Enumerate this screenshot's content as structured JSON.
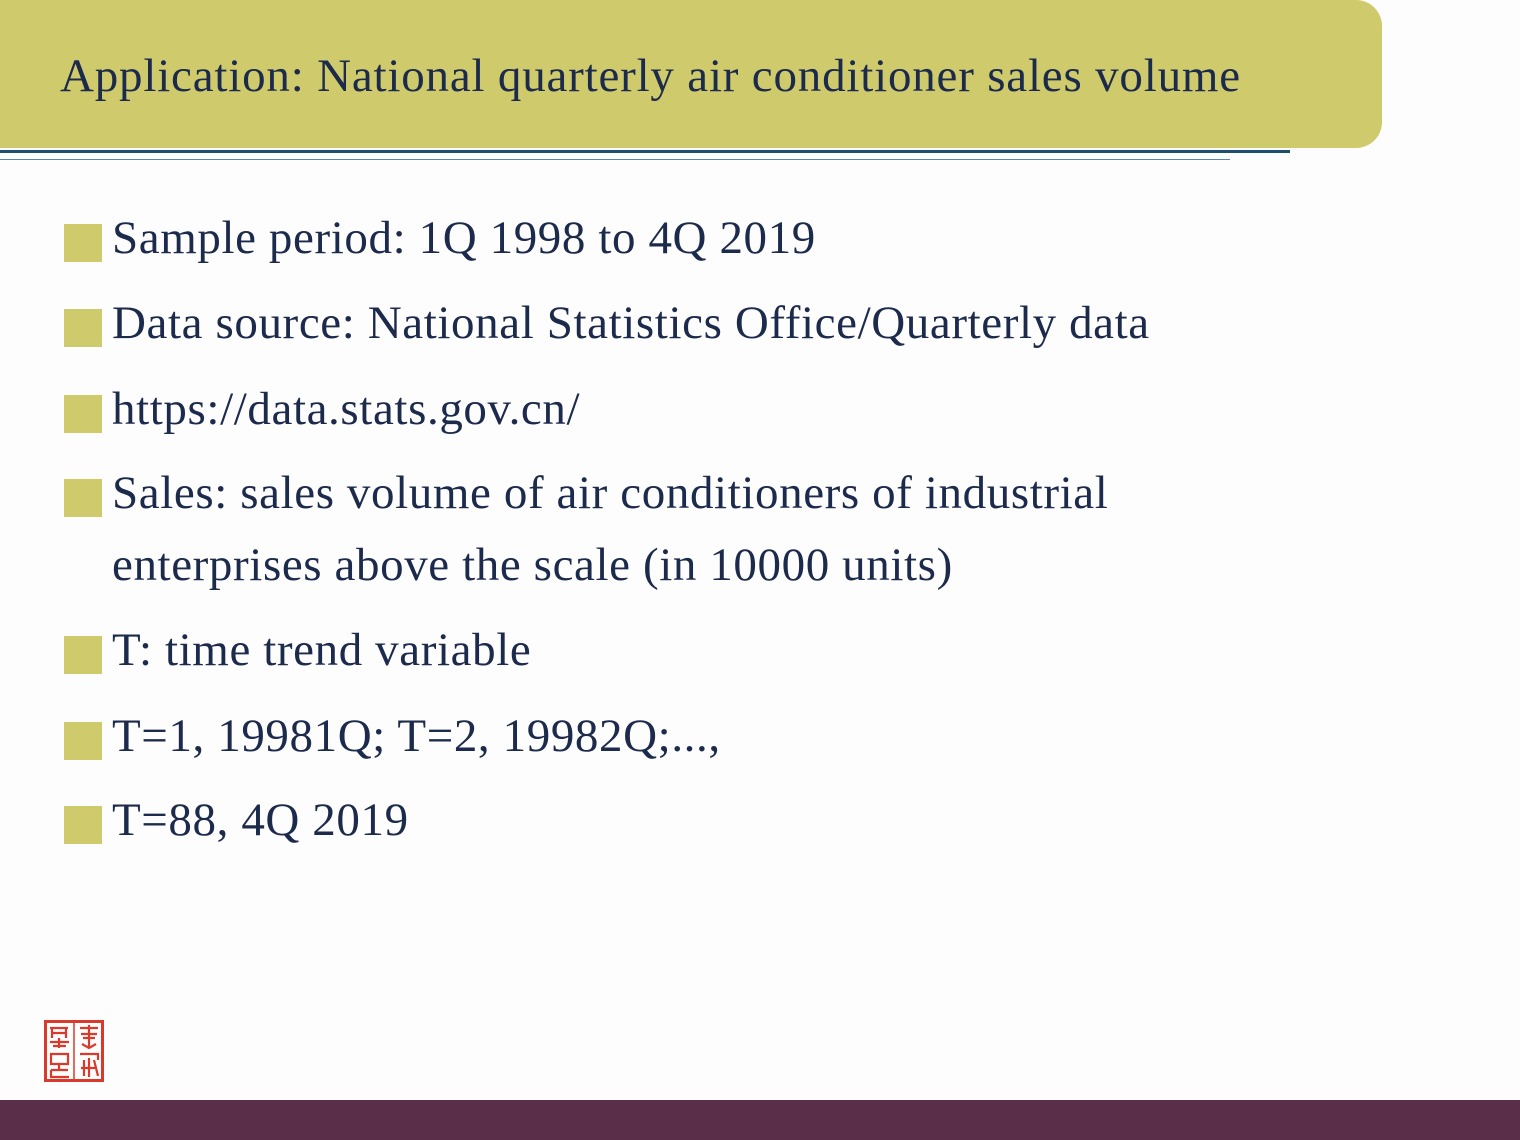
{
  "slide": {
    "title": "Application: National quarterly air conditioner sales volume",
    "bullets": [
      {
        "text": "Sample period: 1Q 1998 to 4Q 2019"
      },
      {
        "text": "Data source: National Statistics Office/Quarterly data"
      },
      {
        "text": "https://data.stats.gov.cn/"
      },
      {
        "text": "Sales: sales volume of air conditioners of industrial",
        "continuation": "enterprises above the scale (in 10000 units)"
      },
      {
        "text": "T: time trend variable"
      },
      {
        "text": "T=1, 19981Q; T=2, 19982Q;...,"
      },
      {
        "text": "T=88, 4Q 2019"
      }
    ]
  },
  "colors": {
    "title_bar": "#cfca6c",
    "bullet_marker": "#cfca6c",
    "text": "#1c2a4c",
    "footer_bar": "#5a2e48",
    "rule": "#1f4f6f",
    "seal": "#d93a2b"
  },
  "icons": {
    "seal": "red-seal-stamp-icon",
    "bullet": "square-bullet-icon"
  }
}
